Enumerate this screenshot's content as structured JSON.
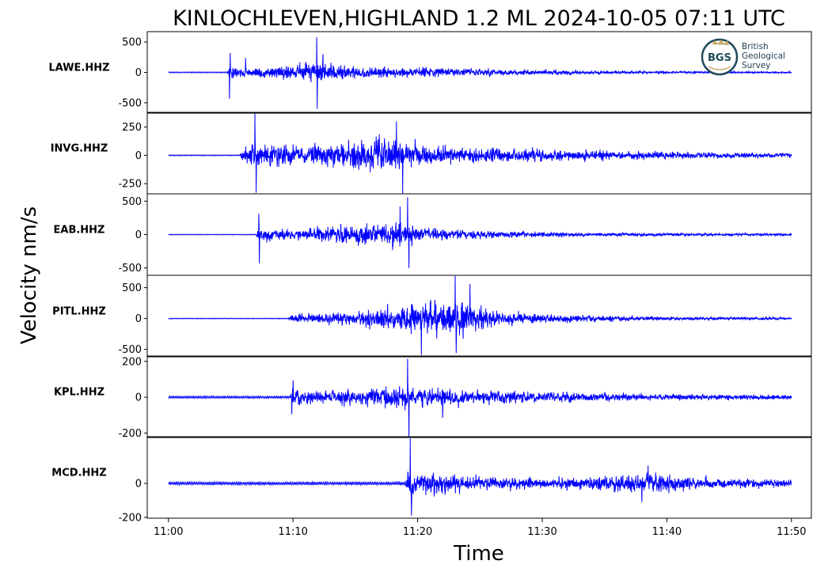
{
  "chart_data": {
    "type": "line",
    "title": "KINLOCHLEVEN,HIGHLAND 1.2 ML   2024-10-05 07:11 UTC",
    "xlabel": "Time",
    "ylabel": "Velocity nm/s",
    "x_range_minutes": [
      -1.7,
      51.6
    ],
    "x_ticks": [
      {
        "label": "11:00",
        "minute": 0
      },
      {
        "label": "11:10",
        "minute": 10
      },
      {
        "label": "11:20",
        "minute": 20
      },
      {
        "label": "11:30",
        "minute": 30
      },
      {
        "label": "11:40",
        "minute": 40
      },
      {
        "label": "11:50",
        "minute": 50
      }
    ],
    "line_color": "#0000ff",
    "grid": false,
    "series": [
      {
        "name": "LAWE.HHZ",
        "ylim": [
          -670,
          670
        ],
        "yticks": [
          {
            "value": 500,
            "label": "500"
          },
          {
            "value": 0,
            "label": "0"
          },
          {
            "value": -500,
            "label": "-500"
          }
        ],
        "noise": 12,
        "env": [
          [
            0,
            12
          ],
          [
            4.7,
            12
          ],
          [
            4.9,
            160
          ],
          [
            5.6,
            120
          ],
          [
            6.5,
            110
          ],
          [
            9,
            150
          ],
          [
            11.5,
            220
          ],
          [
            11.9,
            360
          ],
          [
            12.5,
            220
          ],
          [
            14,
            200
          ],
          [
            16,
            160
          ],
          [
            18,
            130
          ],
          [
            20,
            120
          ],
          [
            24,
            90
          ],
          [
            30,
            60
          ],
          [
            36,
            40
          ],
          [
            40,
            30
          ],
          [
            44,
            22
          ],
          [
            50,
            18
          ]
        ],
        "spikes": [
          [
            4.9,
            -430
          ],
          [
            4.95,
            320
          ],
          [
            11.9,
            575
          ],
          [
            11.95,
            -600
          ],
          [
            12.4,
            300
          ],
          [
            6.2,
            240
          ]
        ]
      },
      {
        "name": "INVG.HHZ",
        "ylim": [
          -340,
          380
        ],
        "yticks": [
          {
            "value": 250,
            "label": "250"
          },
          {
            "value": 0,
            "label": "0"
          },
          {
            "value": -250,
            "label": "-250"
          }
        ],
        "noise": 6,
        "env": [
          [
            0,
            6
          ],
          [
            5.7,
            6
          ],
          [
            6.0,
            70
          ],
          [
            6.6,
            150
          ],
          [
            7.0,
            220
          ],
          [
            7.6,
            170
          ],
          [
            9,
            130
          ],
          [
            11,
            120
          ],
          [
            13,
            150
          ],
          [
            15,
            180
          ],
          [
            17,
            200
          ],
          [
            18.5,
            230
          ],
          [
            20,
            150
          ],
          [
            24,
            100
          ],
          [
            30,
            80
          ],
          [
            36,
            55
          ],
          [
            42,
            40
          ],
          [
            50,
            30
          ]
        ],
        "spikes": [
          [
            6.95,
            370
          ],
          [
            7.05,
            -330
          ],
          [
            18.8,
            -340
          ],
          [
            18.3,
            300
          ]
        ]
      },
      {
        "name": "EAB.HHZ",
        "ylim": [
          -610,
          610
        ],
        "yticks": [
          {
            "value": 500,
            "label": "500"
          },
          {
            "value": 0,
            "label": "0"
          },
          {
            "value": -500,
            "label": "-500"
          }
        ],
        "noise": 8,
        "env": [
          [
            0,
            8
          ],
          [
            7.0,
            10
          ],
          [
            7.2,
            180
          ],
          [
            8,
            140
          ],
          [
            10,
            110
          ],
          [
            13,
            160
          ],
          [
            15,
            200
          ],
          [
            17,
            260
          ],
          [
            18.5,
            320
          ],
          [
            19.5,
            240
          ],
          [
            21,
            140
          ],
          [
            24,
            90
          ],
          [
            28,
            70
          ],
          [
            32,
            45
          ],
          [
            40,
            30
          ],
          [
            50,
            22
          ]
        ],
        "spikes": [
          [
            7.25,
            310
          ],
          [
            7.3,
            -430
          ],
          [
            19.2,
            560
          ],
          [
            19.3,
            -500
          ],
          [
            18.6,
            420
          ]
        ]
      },
      {
        "name": "PITL.HHZ",
        "ylim": [
          -620,
          700
        ],
        "yticks": [
          {
            "value": 500,
            "label": "500"
          },
          {
            "value": 0,
            "label": "0"
          },
          {
            "value": -500,
            "label": "-500"
          }
        ],
        "noise": 9,
        "env": [
          [
            0,
            9
          ],
          [
            9.6,
            10
          ],
          [
            9.9,
            90
          ],
          [
            11,
            110
          ],
          [
            13,
            130
          ],
          [
            15,
            160
          ],
          [
            17,
            230
          ],
          [
            19,
            320
          ],
          [
            21,
            380
          ],
          [
            23,
            410
          ],
          [
            25,
            300
          ],
          [
            27,
            170
          ],
          [
            30,
            100
          ],
          [
            34,
            80
          ],
          [
            40,
            40
          ],
          [
            50,
            28
          ]
        ],
        "spikes": [
          [
            23.0,
            690
          ],
          [
            23.1,
            -560
          ],
          [
            20.3,
            -590
          ],
          [
            24.2,
            560
          ]
        ]
      },
      {
        "name": "KPL.HHZ",
        "ylim": [
          -225,
          230
        ],
        "yticks": [
          {
            "value": 200,
            "label": "200"
          },
          {
            "value": 0,
            "label": "0"
          },
          {
            "value": -200,
            "label": "-200"
          }
        ],
        "noise": 9,
        "env": [
          [
            0,
            9
          ],
          [
            9.7,
            10
          ],
          [
            9.9,
            70
          ],
          [
            11,
            55
          ],
          [
            14,
            60
          ],
          [
            16,
            70
          ],
          [
            18,
            80
          ],
          [
            20,
            90
          ],
          [
            22,
            75
          ],
          [
            25,
            55
          ],
          [
            30,
            40
          ],
          [
            36,
            30
          ],
          [
            42,
            25
          ],
          [
            50,
            20
          ]
        ],
        "spikes": [
          [
            19.2,
            215
          ],
          [
            19.3,
            -225
          ],
          [
            9.9,
            -95
          ],
          [
            10.0,
            95
          ],
          [
            22.0,
            -115
          ]
        ]
      },
      {
        "name": "MCD.HHZ",
        "ylim": [
          -205,
          275
        ],
        "yticks": [
          {
            "value": 0,
            "label": "0"
          },
          {
            "value": -200,
            "label": "-200"
          }
        ],
        "noise": 12,
        "env": [
          [
            0,
            12
          ],
          [
            19.0,
            14
          ],
          [
            19.3,
            120
          ],
          [
            20,
            100
          ],
          [
            22,
            80
          ],
          [
            26,
            60
          ],
          [
            30,
            45
          ],
          [
            34,
            55
          ],
          [
            37,
            75
          ],
          [
            38.5,
            85
          ],
          [
            41,
            60
          ],
          [
            44,
            45
          ],
          [
            50,
            35
          ]
        ],
        "spikes": [
          [
            19.4,
            265
          ],
          [
            19.5,
            -190
          ],
          [
            38.0,
            -110
          ],
          [
            38.5,
            105
          ]
        ]
      }
    ]
  },
  "logo": {
    "monogram": "BGS",
    "lines": [
      "British",
      "Geological",
      "Survey"
    ]
  }
}
